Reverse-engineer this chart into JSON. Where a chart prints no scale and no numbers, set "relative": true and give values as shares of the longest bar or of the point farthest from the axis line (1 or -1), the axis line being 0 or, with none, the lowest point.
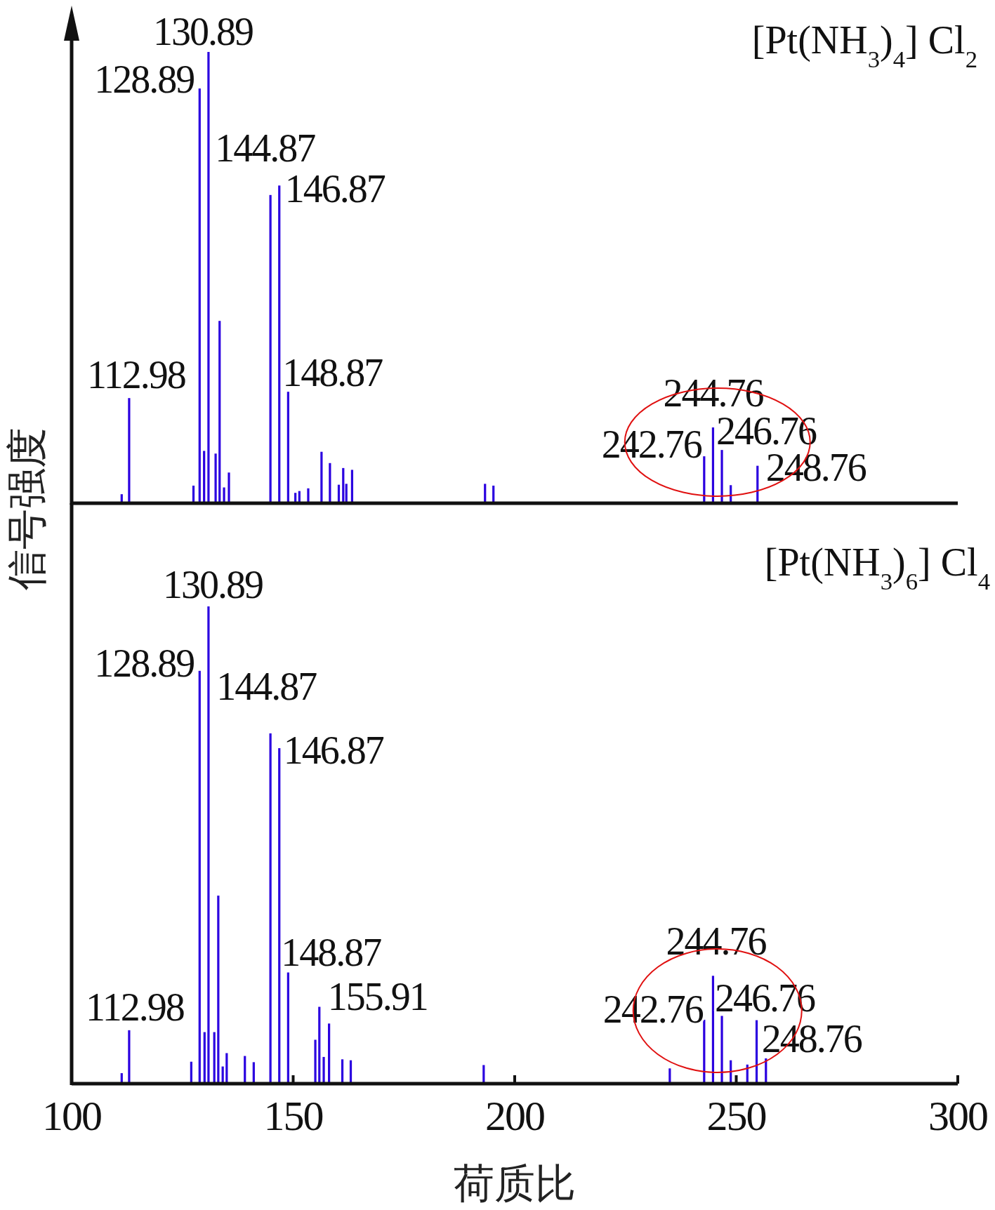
{
  "chart_data": [
    {
      "type": "bar",
      "title": "[Pt(NH$_{3}$)$_{4}$] Cl$_{2}$",
      "ylabel": "信号强度",
      "relative": true,
      "color": "#2a00e0",
      "xlim": [
        100,
        300
      ],
      "xticks": [
        100,
        150,
        200,
        250,
        300
      ],
      "tick_labels": false,
      "x": [
        111.3,
        112.98,
        127.5,
        128.89,
        129.9,
        130.89,
        132.5,
        133.4,
        134.4,
        135.5,
        144.87,
        146.87,
        148.87,
        150.5,
        151.4,
        153.4,
        156.4,
        158.3,
        160.3,
        161.3,
        162.0,
        163.3,
        193.3,
        195.2,
        242.76,
        244.76,
        246.76,
        248.76,
        254.8
      ],
      "values": [
        0.02,
        0.233,
        0.039,
        0.919,
        0.116,
        1,
        0.11,
        0.404,
        0.035,
        0.068,
        0.683,
        0.704,
        0.247,
        0.023,
        0.027,
        0.033,
        0.114,
        0.089,
        0.041,
        0.078,
        0.043,
        0.074,
        0.043,
        0.039,
        0.104,
        0.168,
        0.118,
        0.04,
        0.083
      ],
      "annotations": [
        {
          "text": "112.98",
          "x": 112.98,
          "y": 0.233
        },
        {
          "text": "128.89",
          "x": 128.89,
          "y": 0.919
        },
        {
          "text": "130.89",
          "x": 130.89,
          "y": 1
        },
        {
          "text": "144.87",
          "x": 144.87,
          "y": 0.683
        },
        {
          "text": "146.87",
          "x": 146.87,
          "y": 0.704
        },
        {
          "text": "148.87",
          "x": 148.87,
          "y": 0.247
        },
        {
          "text": "242.76",
          "x": 242.76,
          "y": 0.104
        },
        {
          "text": "244.76",
          "x": 244.76,
          "y": 0.168
        },
        {
          "text": "246.76",
          "x": 246.76,
          "y": 0.118
        },
        {
          "text": "248.76",
          "x": 248.76,
          "y": 0.04
        }
      ]
    },
    {
      "type": "bar",
      "title": "[Pt(NH$_{3}$)$_{6}$] Cl$_{4}$",
      "xlabel": "荷质比",
      "relative": true,
      "color": "#2a00e0",
      "xlim": [
        100,
        300
      ],
      "xticks": [
        100,
        150,
        200,
        250,
        300
      ],
      "tick_labels": "x",
      "x": [
        111.3,
        112.98,
        127.0,
        128.89,
        130.0,
        130.89,
        132.2,
        133.1,
        134.1,
        135.0,
        139.1,
        141.1,
        144.87,
        146.87,
        148.87,
        155.0,
        155.91,
        156.9,
        158.1,
        161.1,
        163.0,
        193.0,
        235.0,
        242.76,
        244.76,
        246.76,
        248.76,
        252.5,
        254.6,
        256.7
      ],
      "values": [
        0.022,
        0.112,
        0.046,
        0.865,
        0.108,
        1,
        0.108,
        0.394,
        0.036,
        0.064,
        0.058,
        0.045,
        0.734,
        0.703,
        0.233,
        0.092,
        0.161,
        0.056,
        0.126,
        0.051,
        0.049,
        0.039,
        0.032,
        0.134,
        0.226,
        0.142,
        0.049,
        0.04,
        0.133,
        0.053
      ],
      "annotations": [
        {
          "text": "112.98",
          "x": 112.98,
          "y": 0.112
        },
        {
          "text": "128.89",
          "x": 128.89,
          "y": 0.865
        },
        {
          "text": "130.89",
          "x": 130.89,
          "y": 1
        },
        {
          "text": "144.87",
          "x": 144.87,
          "y": 0.734
        },
        {
          "text": "146.87",
          "x": 146.87,
          "y": 0.703
        },
        {
          "text": "148.87",
          "x": 148.87,
          "y": 0.233
        },
        {
          "text": "155.91",
          "x": 155.91,
          "y": 0.161
        },
        {
          "text": "242.76",
          "x": 242.76,
          "y": 0.134
        },
        {
          "text": "244.76",
          "x": 244.76,
          "y": 0.226
        },
        {
          "text": "246.76",
          "x": 246.76,
          "y": 0.142
        },
        {
          "text": "248.76",
          "x": 248.76,
          "y": 0.049
        }
      ]
    }
  ]
}
